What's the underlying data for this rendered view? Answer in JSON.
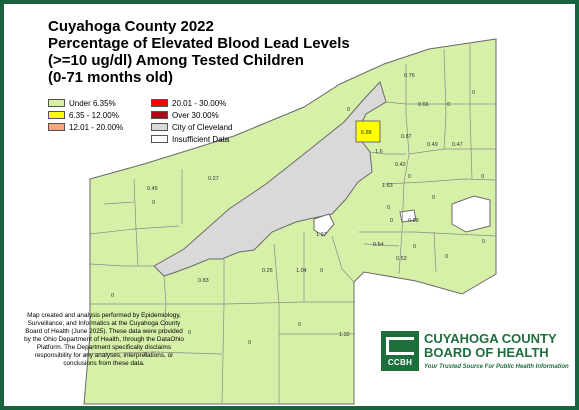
{
  "title": {
    "line1": "Cuyahoga County 2022",
    "line2": "Percentage of Elevated Blood Lead Levels",
    "line3": "(>=10 ug/dl) Among Tested Children",
    "line4": "(0-71 months old)"
  },
  "legend": {
    "items": [
      {
        "label": "Under 6.35%",
        "color": "#d6f0a8"
      },
      {
        "label": "6.35 - 12.00%",
        "color": "#ffff00"
      },
      {
        "label": "12.01 - 20.00%",
        "color": "#f4a582"
      },
      {
        "label": "20.01 - 30.00%",
        "color": "#ff0000"
      },
      {
        "label": "Over 30.00%",
        "color": "#a50f15"
      },
      {
        "label": "City of Cleveland",
        "color": "#d9d9d9"
      },
      {
        "label": "Insufficient Data",
        "color": "#ffffff"
      }
    ]
  },
  "map": {
    "colors": {
      "base": "#d6f0a8",
      "cleveland": "#d9d9d9",
      "highlight": "#ffff00",
      "insufficient": "#ffffff",
      "borders": "#7a7a7a",
      "frame": "#17633f"
    },
    "labels": [
      "0.76",
      "0",
      "0.66",
      "0",
      "0",
      "6.88",
      "0.87",
      "1.6",
      "0.49",
      "0.47",
      "0.42",
      "0",
      "0",
      "0.27",
      "0.45",
      "0",
      "1.63",
      "0",
      "0",
      "0",
      "0.89",
      "1.97",
      "0.54",
      "0",
      "0.53",
      "0",
      "0",
      "0.26",
      "1.04",
      "0",
      "0.83",
      "0",
      "0",
      "0",
      "0",
      "0",
      "1.32"
    ]
  },
  "note": {
    "text": "Map created and analysis performed by Epidemiology, Surveillance, and Informatics at the Cuyahoga County Board of Health (June 2025). These data were provided by the Ohio Department of Health, through the DataOhio Platform. The Department specifically disclaims responsibility for any analyses, interpretations, or conclusions from these data."
  },
  "logo": {
    "mark": "CCBH",
    "line1": "CUYAHOGA COUNTY",
    "line2": "BOARD OF HEALTH",
    "tagline": "Your Trusted Source For Public Health Information"
  }
}
